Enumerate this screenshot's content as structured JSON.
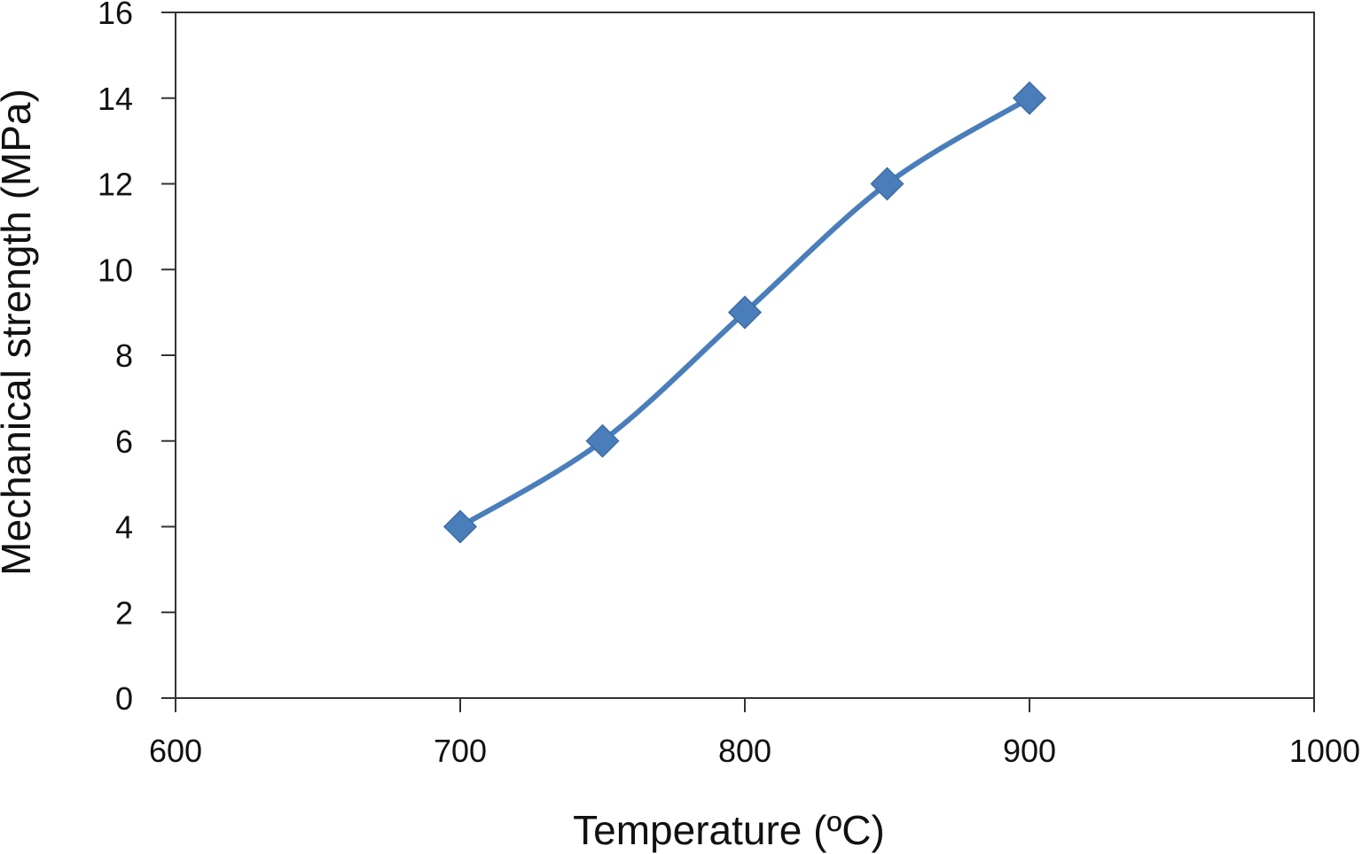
{
  "chart_data": {
    "type": "line",
    "title": "",
    "xlabel": "Temperature (ºC)",
    "ylabel": "Mechanical strength (MPa)",
    "xlim": [
      600,
      1000
    ],
    "ylim": [
      0,
      16
    ],
    "xticks": [
      "600",
      "700",
      "800",
      "900",
      "1000"
    ],
    "yticks": [
      "0",
      "2",
      "4",
      "6",
      "8",
      "10",
      "12",
      "14",
      "16"
    ],
    "grid": false,
    "legend": "none",
    "marker": "diamond",
    "smoothed": true,
    "series": [
      {
        "x": [
          700,
          750,
          800,
          850,
          900
        ],
        "y": [
          4,
          6,
          9,
          12,
          14
        ],
        "color": "#4a7ebb"
      }
    ]
  }
}
